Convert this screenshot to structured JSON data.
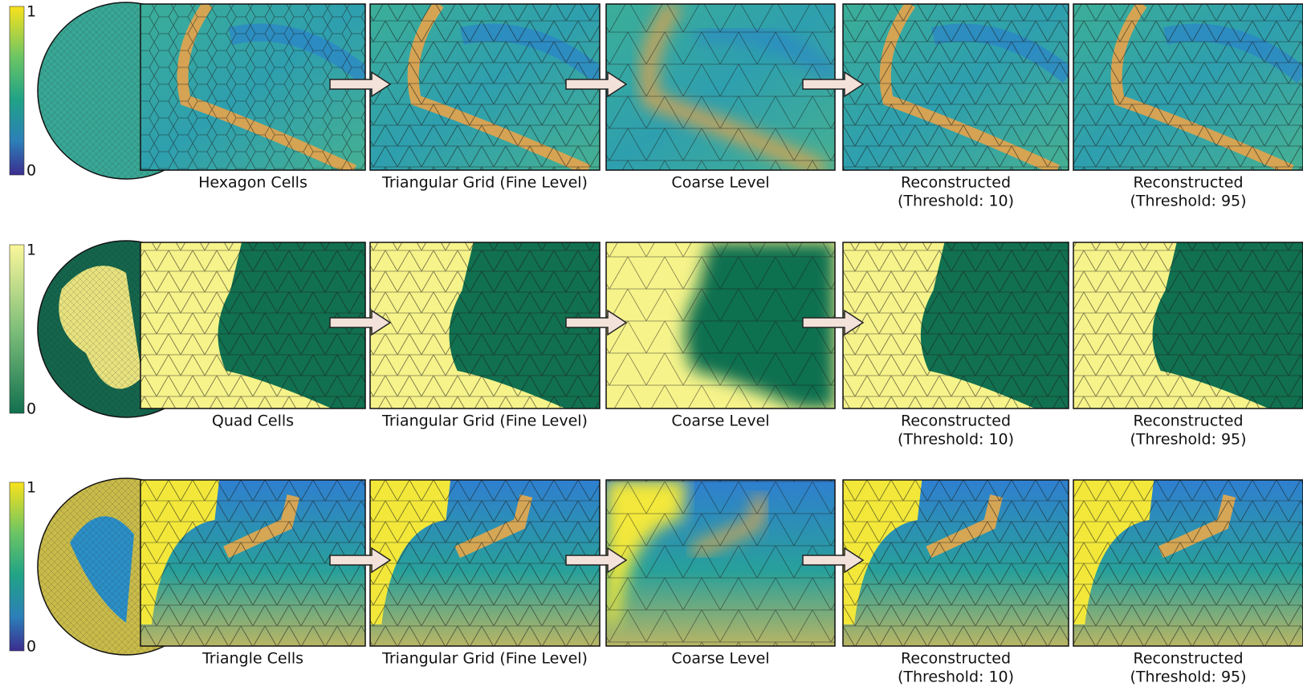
{
  "rows": [
    {
      "colorbar": {
        "max": "1",
        "min": "0"
      },
      "panels": [
        {
          "caption": [
            "Hexagon Cells"
          ]
        },
        {
          "caption": [
            "Triangular Grid (Fine Level)"
          ]
        },
        {
          "caption": [
            "Coarse Level"
          ]
        },
        {
          "caption": [
            "Reconstructed",
            "(Threshold: 10)"
          ]
        },
        {
          "caption": [
            "Reconstructed",
            "(Threshold: 95)"
          ]
        }
      ]
    },
    {
      "colorbar": {
        "max": "1",
        "min": "0"
      },
      "panels": [
        {
          "caption": [
            "Quad Cells"
          ]
        },
        {
          "caption": [
            "Triangular Grid (Fine Level)"
          ]
        },
        {
          "caption": [
            "Coarse Level"
          ]
        },
        {
          "caption": [
            "Reconstructed",
            "(Threshold: 10)"
          ]
        },
        {
          "caption": [
            "Reconstructed",
            "(Threshold: 95)"
          ]
        }
      ]
    },
    {
      "colorbar": {
        "max": "1",
        "min": "0"
      },
      "panels": [
        {
          "caption": [
            "Triangle Cells"
          ]
        },
        {
          "caption": [
            "Triangular Grid (Fine Level)"
          ]
        },
        {
          "caption": [
            "Coarse Level"
          ]
        },
        {
          "caption": [
            "Reconstructed",
            "(Threshold: 10)"
          ]
        },
        {
          "caption": [
            "Reconstructed",
            "(Threshold: 95)"
          ]
        }
      ]
    }
  ]
}
